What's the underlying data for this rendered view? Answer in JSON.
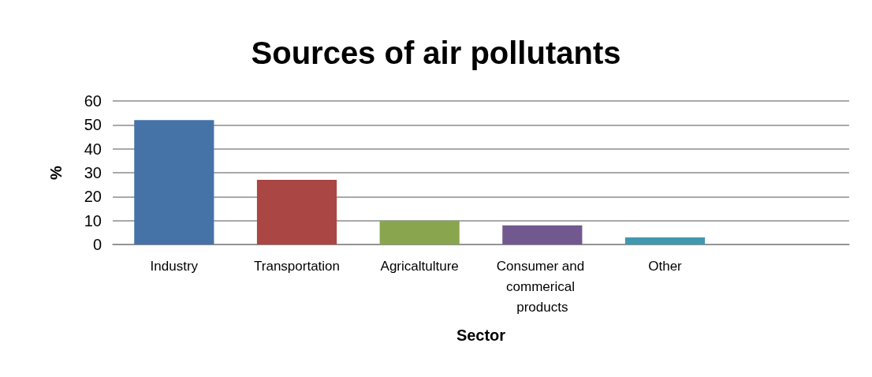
{
  "chart_data": {
    "type": "bar",
    "title": "Sources of air pollutants",
    "xlabel": "Sector",
    "ylabel": "%",
    "categories": [
      "Industry",
      "Transportation",
      "Agricaltulture",
      "Consumer and commerical products",
      "Other",
      null
    ],
    "values": [
      52,
      27,
      10,
      8,
      3,
      null
    ],
    "colors": [
      "#4572a7",
      "#aa4643",
      "#89a54e",
      "#71588f",
      "#4198af",
      "#db843d"
    ],
    "ylim": [
      0,
      60
    ],
    "yticks": [
      0,
      10,
      20,
      30,
      40,
      50,
      60
    ],
    "grid": "y"
  }
}
